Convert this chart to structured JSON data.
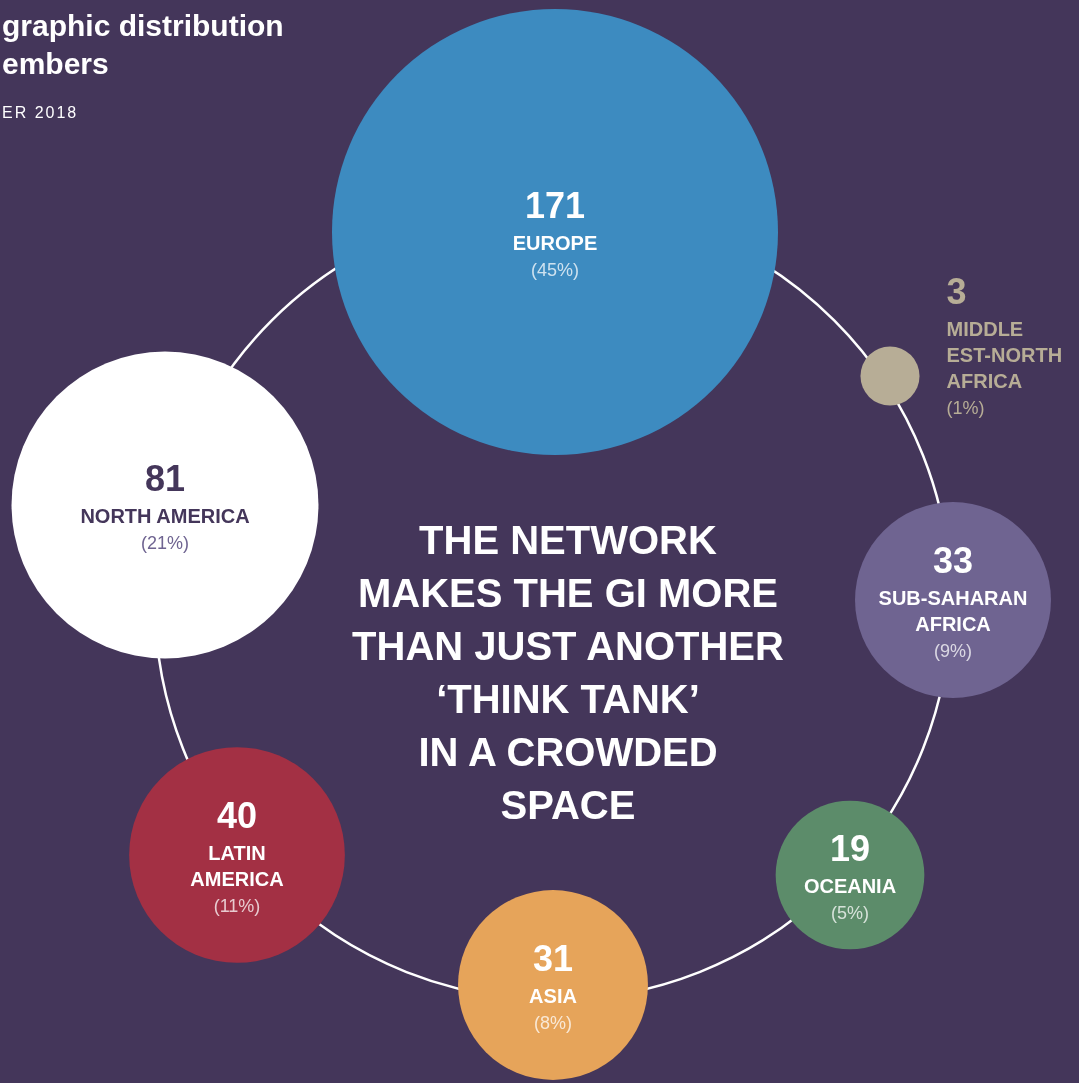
{
  "chart_data": {
    "type": "other",
    "title": "graphic distribution\nembers",
    "subtitle": "ER 2018",
    "categories": [
      "EUROPE",
      "MIDDLE EST-NORTH AFRICA",
      "SUB-SAHARAN AFRICA",
      "OCEANIA",
      "ASIA",
      "LATIN AMERICA",
      "NORTH AMERICA"
    ],
    "values": [
      171,
      3,
      33,
      19,
      31,
      40,
      81
    ],
    "colors": [
      "#3d8bc0",
      "#b7ad96",
      "#6f6491",
      "#5c8c6a",
      "#e6a45a",
      "#a33044",
      "#ffffff"
    ],
    "data_labels": true,
    "annotations": [
      "THE NETWORK\nMAKES THE GI MORE\nTHAN JUST ANOTHER\n‘THINK TANK’\nIN A CROWDED\nSPACE",
      {
        "text": "(45%)",
        "x": "EUROPE"
      },
      {
        "text": "(1%)",
        "x": "MIDDLE EST-NORTH AFRICA"
      },
      {
        "text": "(9%)",
        "x": "SUB-SAHARAN AFRICA"
      },
      {
        "text": "(5%)",
        "x": "OCEANIA"
      },
      {
        "text": "(8%)",
        "x": "ASIA"
      },
      {
        "text": "(11%)",
        "x": "LATIN AMERICA"
      },
      {
        "text": "(21%)",
        "x": "NORTH AMERICA"
      }
    ]
  }
}
